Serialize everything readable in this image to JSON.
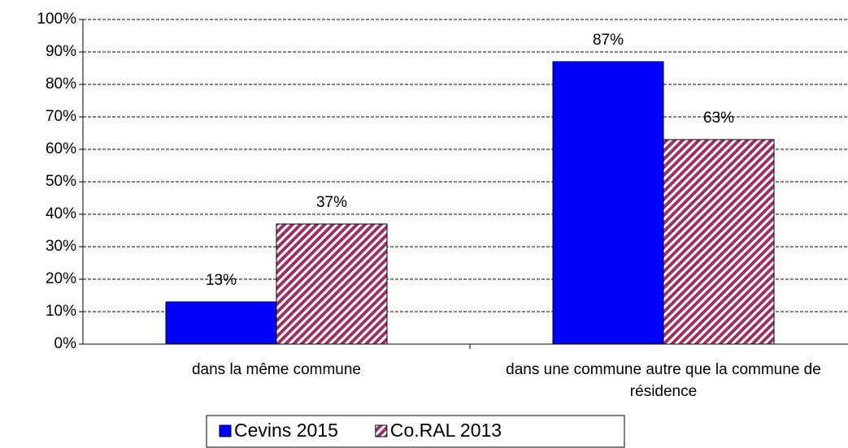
{
  "chart_data": {
    "type": "bar",
    "categories": [
      "dans la même commune",
      "dans une commune autre que la commune de résidence"
    ],
    "series": [
      {
        "name": "Cevins 2015",
        "color": "#0000ff",
        "hatch": false,
        "values": [
          13,
          87
        ],
        "value_labels": [
          "13%",
          "87%"
        ]
      },
      {
        "name": "Co.RAL 2013",
        "color": "#993366",
        "hatch": true,
        "values": [
          37,
          63
        ],
        "value_labels": [
          "37%",
          "63%"
        ]
      }
    ],
    "ylim": [
      0,
      100
    ],
    "yticks": [
      {
        "value": 0,
        "label": "0%"
      },
      {
        "value": 10,
        "label": "10%"
      },
      {
        "value": 20,
        "label": "20%"
      },
      {
        "value": 30,
        "label": "30%"
      },
      {
        "value": 40,
        "label": "40%"
      },
      {
        "value": 50,
        "label": "50%"
      },
      {
        "value": 60,
        "label": "60%"
      },
      {
        "value": 70,
        "label": "70%"
      },
      {
        "value": 80,
        "label": "80%"
      },
      {
        "value": 90,
        "label": "90%"
      },
      {
        "value": 100,
        "label": "100%"
      }
    ],
    "grid": true,
    "legend": "bottom"
  }
}
